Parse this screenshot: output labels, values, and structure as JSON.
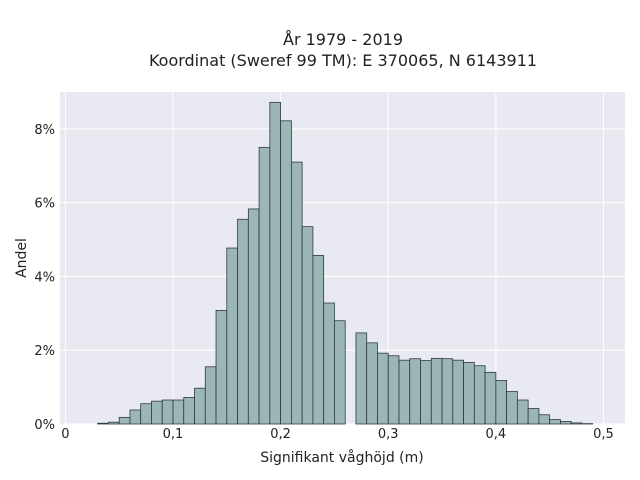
{
  "chart_data": {
    "type": "bar",
    "title": "År 1979 - 2019",
    "subtitle": "Koordinat (Sweref 99 TM): E 370065, N 6143911",
    "xlabel": "Signifikant våghöjd (m)",
    "ylabel": "Andel",
    "xlim": [
      -0.005,
      0.52
    ],
    "ylim": [
      0,
      9.0
    ],
    "x_ticks": [
      0,
      0.1,
      0.2,
      0.3,
      0.4,
      0.5
    ],
    "x_tick_labels": [
      "0",
      "0,1",
      "0,2",
      "0,3",
      "0,4",
      "0,5"
    ],
    "y_ticks": [
      0,
      2,
      4,
      6,
      8
    ],
    "y_tick_labels": [
      "0%",
      "2%",
      "4%",
      "6%",
      "8%"
    ],
    "bin_width": 0.01,
    "bin_starts": [
      0.03,
      0.04,
      0.05,
      0.06,
      0.07,
      0.08,
      0.09,
      0.1,
      0.11,
      0.12,
      0.13,
      0.14,
      0.15,
      0.16,
      0.17,
      0.18,
      0.19,
      0.2,
      0.21,
      0.22,
      0.23,
      0.24,
      0.25,
      0.26,
      0.27,
      0.28,
      0.29,
      0.3,
      0.31,
      0.32,
      0.33,
      0.34,
      0.35,
      0.36,
      0.37,
      0.38,
      0.39,
      0.4,
      0.41,
      0.42,
      0.43,
      0.44,
      0.45,
      0.46,
      0.47,
      0.48
    ],
    "values": [
      0.02,
      0.05,
      0.18,
      0.38,
      0.55,
      0.62,
      0.65,
      0.65,
      0.72,
      0.97,
      1.55,
      3.08,
      4.77,
      5.55,
      5.83,
      7.5,
      8.72,
      8.22,
      7.1,
      5.35,
      4.57,
      3.28,
      2.8,
      0.0,
      2.47,
      2.2,
      1.92,
      1.85,
      1.73,
      1.77,
      1.72,
      1.78,
      1.77,
      1.73,
      1.67,
      1.58,
      1.4,
      1.18,
      0.88,
      0.65,
      0.42,
      0.25,
      0.12,
      0.07,
      0.03,
      0.01
    ],
    "colors": {
      "bar_fill": "#9cb6b5",
      "bar_edge": "#2e3b3b",
      "plot_bg": "#e9e9f1",
      "grid": "#ffffff"
    },
    "grid": true,
    "legend": false
  }
}
